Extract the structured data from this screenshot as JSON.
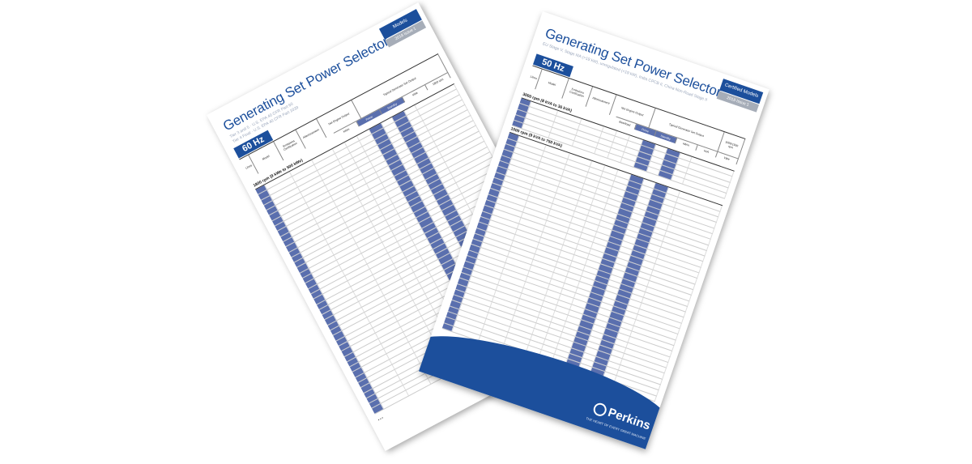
{
  "back_sheet": {
    "title": "Generating Set Power Selector",
    "subtitle_lines": [
      "Tier 3 and 5 · U.S. EPA 40 CFR Part 60",
      "Tier 4 Final · U.S. EPA 40 CFR Part 1039"
    ],
    "frequency": "60 Hz",
    "tab_top": "Models",
    "tab_bottom": "2018 Issue 1",
    "headers": [
      "Litres",
      "Model",
      "Emissions Certification",
      "Aftertreatment",
      "Net Engine Output",
      "Typical Generator Set Output",
      "kWm",
      "Prime",
      "Standby",
      "kWe",
      "1800 rpm"
    ],
    "section": "1800 rpm (9 kWe to 500 kWe)"
  },
  "front_sheet": {
    "title": "Generating Set Power Selector",
    "subtitle": "EU Stage V, Stage IIIA (>19 kW), unregulated (<19 kW), India CPCB II, China Non-Road Stage II",
    "frequency": "50 Hz",
    "tab_top": "Certified Models",
    "tab_bottom": "2018 Issue 1",
    "headers": [
      "Litres",
      "Model",
      "Emissions Certification",
      "Aftertreatment",
      "Net Engine Output",
      "Typical Generator Set Output",
      "1000/1500 rpm",
      "Baseload",
      "Prime",
      "Standby",
      "kWm",
      "kVA",
      "kWe"
    ],
    "sections": [
      "3000 rpm (8 kVA to 36 kVA)",
      "1500 rpm (9 kVA to 750 kVA)"
    ],
    "brand": "Perkins",
    "brand_tagline": "THE HEART OF EVERY GREAT MACHINE"
  },
  "colors": {
    "brand_blue": "#1c4f9c",
    "column_blue": "#5a6fae",
    "tab_grey": "#a6adb8"
  }
}
